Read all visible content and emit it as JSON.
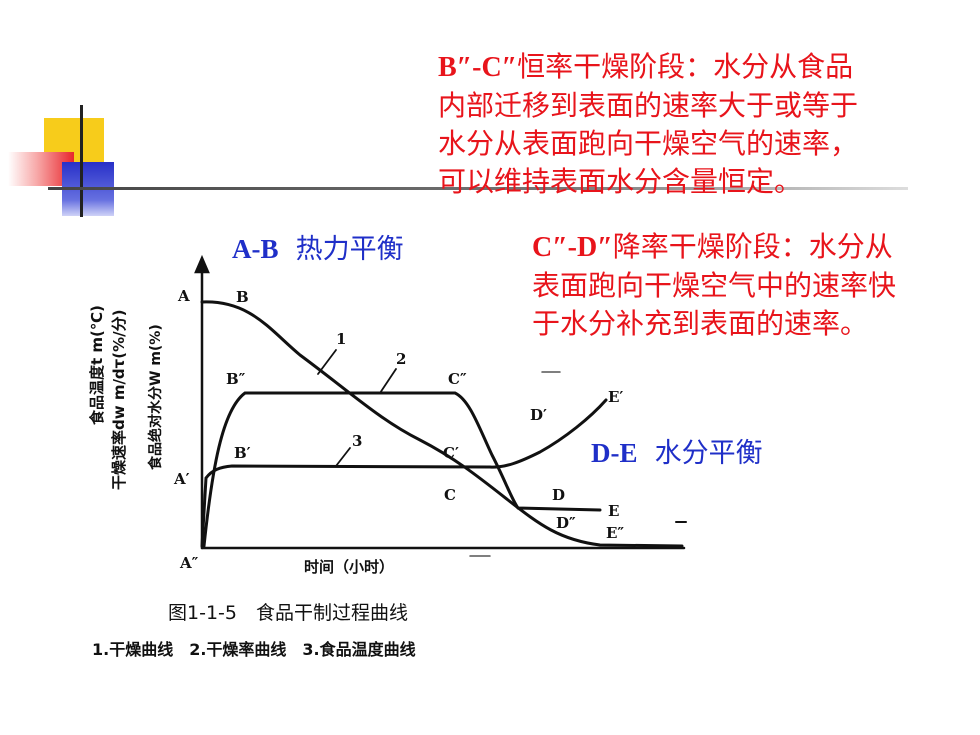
{
  "notes": {
    "bc": {
      "label": "B″-C″",
      "text_line1": "恒率干燥阶段：水分从食品",
      "text_line2": "内部迁移到表面的速率大于或等于",
      "text_line3": "水分从表面跑向干燥空气的速率，",
      "text_line4": "可以维持表面水分含量恒定。"
    },
    "cd": {
      "label": "C″-D″",
      "text_line1": "降率干燥阶段：水分从",
      "text_line2": "表面跑向干燥空气中的速率快",
      "text_line3": "于水分补充到表面的速率。"
    },
    "ab": {
      "label": "A-B",
      "text": "热力平衡"
    },
    "de": {
      "label": "D-E",
      "text": "水分平衡"
    }
  },
  "figure": {
    "y_label_1": "食品温度t m(℃)",
    "y_label_2": "干燥速率dw m/dτ(%/分)",
    "y_label_3": "食品绝对水分W m(%)",
    "x_label": "时间（小时）",
    "caption": "图1-1-5　食品干制过程曲线",
    "legend": "1.干燥曲线　2.干燥率曲线　3.食品温度曲线",
    "points": {
      "A": "A",
      "B": "B",
      "A1": "A′",
      "A2": "A″",
      "B1": "B′",
      "B2": "B″",
      "C": "C",
      "C1": "C′",
      "C2": "C″",
      "D": "D",
      "D1": "D′",
      "D2": "D″",
      "E": "E",
      "E1": "E′",
      "E2": "E″"
    },
    "curve_numbers": {
      "c1": "1",
      "c2": "2",
      "c3": "3"
    }
  },
  "colors": {
    "red_text": "#e8141b",
    "blue_text": "#1f2fc8",
    "deco_yellow": "#f7cc1b",
    "deco_blue": "#2830c8"
  }
}
